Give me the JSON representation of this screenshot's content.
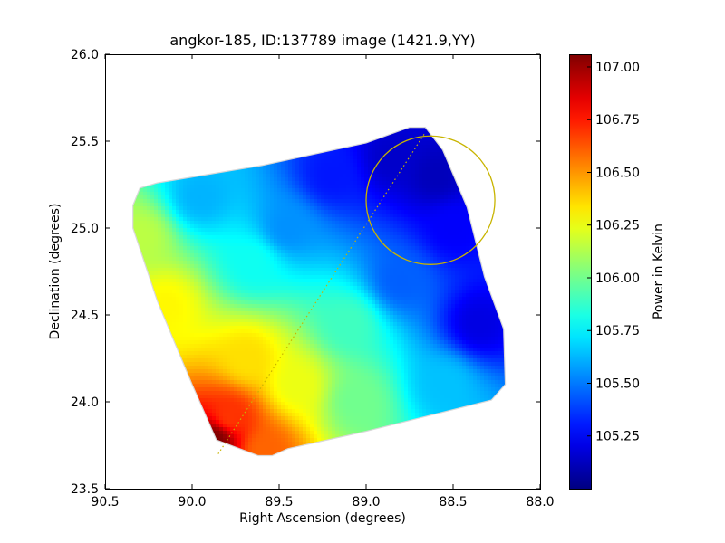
{
  "chart_data": {
    "type": "heatmap",
    "title": "angkor-185, ID:137789 image (1421.9,YY)",
    "xlabel": "Right Ascension (degrees)",
    "ylabel": "Declination (degrees)",
    "xlim": [
      90.5,
      88.0
    ],
    "ylim": [
      23.5,
      26.0
    ],
    "x_ticks": [
      90.5,
      90.0,
      89.5,
      89.0,
      88.5,
      88.0
    ],
    "x_tick_labels": [
      "90.5",
      "90.0",
      "89.5",
      "89.0",
      "88.5",
      "88.0"
    ],
    "y_ticks": [
      23.5,
      24.0,
      24.5,
      25.0,
      25.5,
      26.0
    ],
    "y_tick_labels": [
      "23.5",
      "24.0",
      "24.5",
      "25.0",
      "25.5",
      "26.0"
    ],
    "colorbar": {
      "label": "Power in Kelvin",
      "colormap": "jet",
      "min": 105.0,
      "max": 107.06,
      "ticks": [
        105.25,
        105.5,
        105.75,
        106.0,
        106.25,
        106.5,
        106.75,
        107.0
      ],
      "tick_labels": [
        "105.25",
        "105.50",
        "105.75",
        "106.00",
        "106.25",
        "106.50",
        "106.75",
        "107.00"
      ]
    },
    "map": {
      "footprint": [
        [
          90.34,
          25.13
        ],
        [
          90.3,
          25.23
        ],
        [
          90.2,
          25.26
        ],
        [
          89.6,
          25.36
        ],
        [
          89.0,
          25.49
        ],
        [
          88.75,
          25.58
        ],
        [
          88.66,
          25.58
        ],
        [
          88.56,
          25.45
        ],
        [
          88.42,
          25.12
        ],
        [
          88.32,
          24.72
        ],
        [
          88.21,
          24.42
        ],
        [
          88.2,
          24.1
        ],
        [
          88.28,
          24.01
        ],
        [
          88.6,
          23.93
        ],
        [
          89.0,
          23.83
        ],
        [
          89.45,
          23.73
        ],
        [
          89.54,
          23.69
        ],
        [
          89.62,
          23.69
        ],
        [
          89.86,
          23.78
        ],
        [
          90.0,
          24.1
        ],
        [
          90.2,
          24.58
        ],
        [
          90.3,
          24.88
        ],
        [
          90.34,
          25.0
        ]
      ],
      "value_samples": [
        {
          "ra": 89.87,
          "dec": 23.78,
          "value": 107.06
        },
        {
          "ra": 89.78,
          "dec": 23.92,
          "value": 106.7
        },
        {
          "ra": 89.58,
          "dec": 23.72,
          "value": 106.6
        },
        {
          "ra": 89.68,
          "dec": 24.25,
          "value": 106.35
        },
        {
          "ra": 90.15,
          "dec": 24.55,
          "value": 106.3
        },
        {
          "ra": 89.4,
          "dec": 24.1,
          "value": 106.25
        },
        {
          "ra": 90.3,
          "dec": 24.95,
          "value": 106.15
        },
        {
          "ra": 89.05,
          "dec": 24.0,
          "value": 106.0
        },
        {
          "ra": 89.1,
          "dec": 24.45,
          "value": 105.9
        },
        {
          "ra": 89.65,
          "dec": 24.8,
          "value": 105.8
        },
        {
          "ra": 88.55,
          "dec": 24.1,
          "value": 105.65
        },
        {
          "ra": 89.95,
          "dec": 25.18,
          "value": 105.62
        },
        {
          "ra": 89.45,
          "dec": 25.0,
          "value": 105.55
        },
        {
          "ra": 88.8,
          "dec": 24.7,
          "value": 105.45
        },
        {
          "ra": 89.2,
          "dec": 25.3,
          "value": 105.3
        },
        {
          "ra": 88.35,
          "dec": 24.45,
          "value": 105.2
        },
        {
          "ra": 88.85,
          "dec": 25.4,
          "value": 105.15
        },
        {
          "ra": 88.6,
          "dec": 25.3,
          "value": 105.12
        },
        {
          "ra": 88.5,
          "dec": 25.0,
          "value": 105.25
        }
      ]
    },
    "overlays": {
      "circle": {
        "center_ra": 88.63,
        "center_dec": 25.16,
        "radius_deg": 0.37,
        "color": "#c8b400"
      },
      "line": {
        "from": [
          89.85,
          23.7
        ],
        "to": [
          88.66,
          25.55
        ],
        "style": "dotted",
        "color": "#c8b400"
      }
    }
  }
}
